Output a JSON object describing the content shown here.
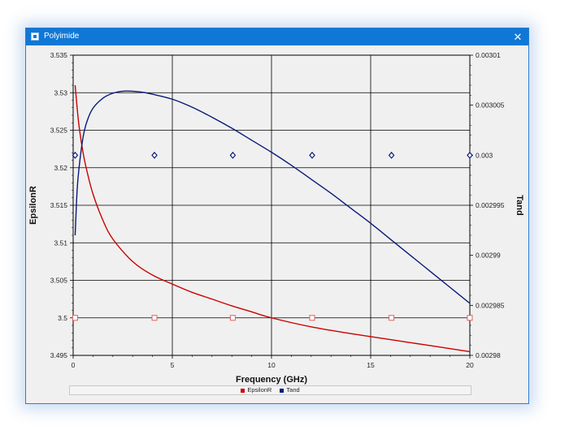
{
  "window": {
    "title": "Polyimide",
    "close_glyph": "✕",
    "app_icon": "window-icon",
    "titlebar_color": "#0f78d7"
  },
  "chart_data": {
    "type": "line",
    "xlabel": "Frequency (GHz)",
    "ylabel": "EpsilonR",
    "y2label": "Tand",
    "xlim": [
      0,
      20
    ],
    "ylim": [
      3.495,
      3.535
    ],
    "y2lim": [
      0.00298,
      0.00301
    ],
    "x_ticks": [
      "0",
      "5",
      "10",
      "15",
      "20"
    ],
    "y_ticks": [
      "3.495",
      "3.5",
      "3.505",
      "3.51",
      "3.515",
      "3.52",
      "3.525",
      "3.53",
      "3.535"
    ],
    "y2_ticks": [
      "0.00298",
      "0.002985",
      "0.00299",
      "0.002995",
      "0.003",
      "0.003005",
      "0.00301"
    ],
    "grid": true,
    "legend_position": "bottom",
    "series": [
      {
        "name": "EpsilonR",
        "axis": "left",
        "color": "#cc0000",
        "x": [
          0.1,
          0.2,
          0.3,
          0.5,
          0.7,
          1,
          1.5,
          2,
          3,
          4,
          5,
          6,
          7,
          8,
          9,
          10,
          12,
          14,
          16,
          18,
          20
        ],
        "y": [
          3.531,
          3.528,
          3.5255,
          3.522,
          3.5195,
          3.5165,
          3.513,
          3.5105,
          3.5075,
          3.5057,
          3.5045,
          3.5034,
          3.5025,
          3.5016,
          3.5008,
          3.5,
          3.4988,
          3.4979,
          3.4971,
          3.4963,
          3.4955
        ]
      },
      {
        "name": "Tand",
        "axis": "right",
        "color": "#0a1a7a",
        "x": [
          0.1,
          0.2,
          0.3,
          0.5,
          0.7,
          1,
          1.5,
          2,
          2.5,
          3,
          3.5,
          4,
          5,
          6,
          7,
          8,
          9,
          10,
          11,
          12,
          13,
          14,
          15,
          16,
          17,
          18,
          19,
          20
        ],
        "y": [
          0.002992,
          0.0029965,
          0.0029988,
          0.0030018,
          0.0030034,
          0.0030047,
          0.0030057,
          0.0030062,
          0.0030064,
          0.0030064,
          0.0030063,
          0.0030061,
          0.0030056,
          0.0030048,
          0.0030038,
          0.0030027,
          0.0030015,
          0.0030003,
          0.002999,
          0.0029976,
          0.0029962,
          0.0029947,
          0.0029932,
          0.0029916,
          0.00299,
          0.0029884,
          0.0029868,
          0.0029852
        ]
      }
    ],
    "markers": [
      {
        "series": "EpsilonR",
        "shape": "square",
        "color": "#e06060",
        "x": [
          0.1,
          4.1,
          8.05,
          12.05,
          16.05,
          20
        ],
        "y": [
          3.5,
          3.5,
          3.5,
          3.5,
          3.5,
          3.5
        ]
      },
      {
        "series": "Tand",
        "shape": "diamond",
        "color": "#0a1a7a",
        "axis": "right",
        "x": [
          0.1,
          4.1,
          8.05,
          12.05,
          16.05,
          20
        ],
        "y": [
          0.003,
          0.003,
          0.003,
          0.003,
          0.003,
          0.003
        ]
      }
    ]
  }
}
